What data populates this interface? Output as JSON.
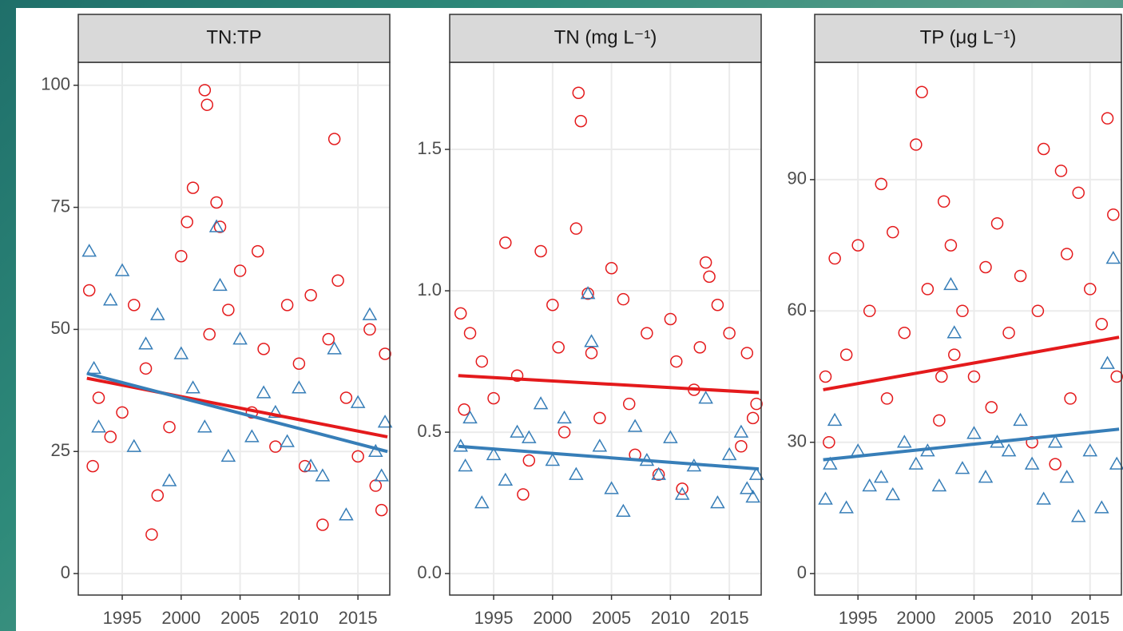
{
  "chart_data": [
    {
      "type": "scatter",
      "title": "TN:TP",
      "xlim": [
        1991.27,
        2017.7
      ],
      "ylim": [
        -4.4,
        104.7
      ],
      "xticks": [
        1995,
        2000,
        2005,
        2010,
        2015
      ],
      "yticks": [
        0,
        25,
        50,
        75,
        100
      ],
      "grid": true,
      "series": [
        {
          "color": "#e41a1c",
          "marker": "circle",
          "x": [
            1992.2,
            1992.5,
            1993,
            1994,
            1995,
            1996,
            1997,
            1997.5,
            1998,
            1999,
            2000,
            2000.5,
            2001,
            2002,
            2002.2,
            2002.4,
            2003,
            2003.3,
            2004,
            2005,
            2006,
            2006.5,
            2007,
            2008,
            2009,
            2010,
            2010.5,
            2011,
            2012,
            2012.5,
            2013,
            2013.3,
            2014,
            2015,
            2016,
            2016.5,
            2017,
            2017.3
          ],
          "values": [
            58,
            22,
            36,
            28,
            33,
            55,
            42,
            8,
            16,
            30,
            65,
            72,
            79,
            99,
            96,
            49,
            76,
            71,
            54,
            62,
            33,
            66,
            46,
            26,
            55,
            43,
            22,
            57,
            10,
            48,
            89,
            60,
            36,
            24,
            50,
            18,
            13,
            45
          ],
          "fit_x": [
            1992,
            2017.5
          ],
          "fit_values": [
            40,
            28
          ]
        },
        {
          "color": "#377eb8",
          "marker": "triangle",
          "x": [
            1992.2,
            1992.6,
            1993,
            1994,
            1995,
            1996,
            1997,
            1998,
            1999,
            2000,
            2001,
            2002,
            2003,
            2003.3,
            2004,
            2005,
            2006,
            2007,
            2008,
            2009,
            2010,
            2011,
            2012,
            2013,
            2014,
            2015,
            2016,
            2016.5,
            2017,
            2017.3
          ],
          "values": [
            66,
            42,
            30,
            56,
            62,
            26,
            47,
            53,
            19,
            45,
            38,
            30,
            71,
            59,
            24,
            48,
            28,
            37,
            33,
            27,
            38,
            22,
            20,
            46,
            12,
            35,
            53,
            25,
            20,
            31
          ],
          "fit_x": [
            1992,
            2017.5
          ],
          "fit_values": [
            41,
            25
          ]
        }
      ]
    },
    {
      "type": "scatter",
      "title": "TN (mg L⁻¹)",
      "xlim": [
        1991.27,
        2017.7
      ],
      "ylim": [
        -0.076,
        1.808
      ],
      "xticks": [
        1995,
        2000,
        2005,
        2010,
        2015
      ],
      "yticks": [
        {
          "value": 0,
          "label": "0.0"
        },
        0.5,
        {
          "value": 1,
          "label": "1.0"
        },
        1.5
      ],
      "grid": true,
      "series": [
        {
          "color": "#e41a1c",
          "marker": "circle",
          "x": [
            1992.2,
            1992.5,
            1993,
            1994,
            1995,
            1996,
            1997,
            1997.5,
            1998,
            1999,
            2000,
            2000.5,
            2001,
            2002,
            2002.2,
            2002.4,
            2003,
            2003.3,
            2004,
            2005,
            2006,
            2006.5,
            2007,
            2008,
            2009,
            2010,
            2010.5,
            2011,
            2012,
            2012.5,
            2013,
            2013.3,
            2014,
            2015,
            2016,
            2016.5,
            2017,
            2017.3
          ],
          "values": [
            0.92,
            0.58,
            0.85,
            0.75,
            0.62,
            1.17,
            0.7,
            0.28,
            0.4,
            1.14,
            0.95,
            0.8,
            0.5,
            1.22,
            1.7,
            1.6,
            0.99,
            0.78,
            0.55,
            1.08,
            0.97,
            0.6,
            0.42,
            0.85,
            0.35,
            0.9,
            0.75,
            0.3,
            0.65,
            0.8,
            1.1,
            1.05,
            0.95,
            0.85,
            0.45,
            0.78,
            0.55,
            0.6
          ],
          "fit_x": [
            1992,
            2017.5
          ],
          "fit_values": [
            0.7,
            0.64
          ]
        },
        {
          "color": "#377eb8",
          "marker": "triangle",
          "x": [
            1992.2,
            1992.6,
            1993,
            1994,
            1995,
            1996,
            1997,
            1998,
            1999,
            2000,
            2001,
            2002,
            2003,
            2003.3,
            2004,
            2005,
            2006,
            2007,
            2008,
            2009,
            2010,
            2011,
            2012,
            2013,
            2014,
            2015,
            2016,
            2016.5,
            2017,
            2017.3
          ],
          "values": [
            0.45,
            0.38,
            0.55,
            0.25,
            0.42,
            0.33,
            0.5,
            0.48,
            0.6,
            0.4,
            0.55,
            0.35,
            0.99,
            0.82,
            0.45,
            0.3,
            0.22,
            0.52,
            0.4,
            0.35,
            0.48,
            0.28,
            0.38,
            0.62,
            0.25,
            0.42,
            0.5,
            0.3,
            0.27,
            0.35
          ],
          "fit_x": [
            1992,
            2017.5
          ],
          "fit_values": [
            0.45,
            0.37
          ]
        }
      ]
    },
    {
      "type": "scatter",
      "title": "TP (μg L⁻¹)",
      "xlim": [
        1991.27,
        2017.7
      ],
      "ylim": [
        -4.9,
        116.8
      ],
      "xticks": [
        1995,
        2000,
        2005,
        2010,
        2015
      ],
      "yticks": [
        0,
        30,
        60,
        90
      ],
      "grid": true,
      "series": [
        {
          "color": "#e41a1c",
          "marker": "circle",
          "x": [
            1992.2,
            1992.5,
            1993,
            1994,
            1995,
            1996,
            1997,
            1997.5,
            1998,
            1999,
            2000,
            2000.5,
            2001,
            2002,
            2002.2,
            2002.4,
            2003,
            2003.3,
            2004,
            2005,
            2006,
            2006.5,
            2007,
            2008,
            2009,
            2010,
            2010.5,
            2011,
            2012,
            2012.5,
            2013,
            2013.3,
            2014,
            2015,
            2016,
            2016.5,
            2017,
            2017.3
          ],
          "values": [
            45,
            30,
            72,
            50,
            75,
            60,
            89,
            40,
            78,
            55,
            98,
            110,
            65,
            35,
            45,
            85,
            75,
            50,
            60,
            45,
            70,
            38,
            80,
            55,
            68,
            30,
            60,
            97,
            25,
            92,
            73,
            40,
            87,
            65,
            57,
            104,
            82,
            45
          ],
          "fit_x": [
            1992,
            2017.5
          ],
          "fit_values": [
            42,
            54
          ]
        },
        {
          "color": "#377eb8",
          "marker": "triangle",
          "x": [
            1992.2,
            1992.6,
            1993,
            1994,
            1995,
            1996,
            1997,
            1998,
            1999,
            2000,
            2001,
            2002,
            2003,
            2003.3,
            2004,
            2005,
            2006,
            2007,
            2008,
            2009,
            2010,
            2011,
            2012,
            2013,
            2014,
            2015,
            2016,
            2016.5,
            2017,
            2017.3
          ],
          "values": [
            17,
            25,
            35,
            15,
            28,
            20,
            22,
            18,
            30,
            25,
            28,
            20,
            66,
            55,
            24,
            32,
            22,
            30,
            28,
            35,
            25,
            17,
            30,
            22,
            13,
            28,
            15,
            48,
            72,
            25
          ],
          "fit_x": [
            1992,
            2017.5
          ],
          "fit_values": [
            26,
            33
          ]
        }
      ]
    }
  ]
}
